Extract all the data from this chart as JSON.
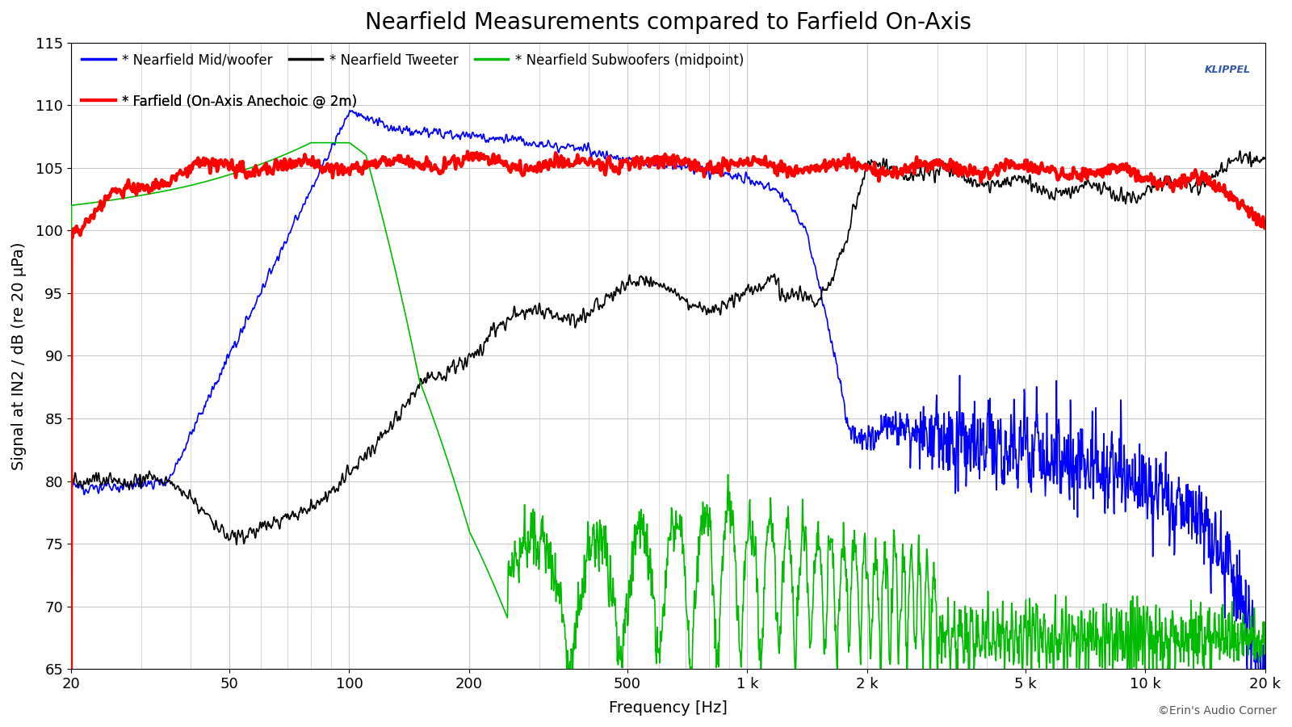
{
  "title": "Nearfield Measurements compared to Farfield On-Axis",
  "xlabel": "Frequency [Hz]",
  "ylabel": "Signal at IN2 / dB (re 20 μPa)",
  "ylim": [
    65,
    115
  ],
  "xlim": [
    20,
    20000
  ],
  "yticks": [
    65,
    70,
    75,
    80,
    85,
    90,
    95,
    100,
    105,
    110,
    115
  ],
  "xtick_positions": [
    20,
    50,
    100,
    200,
    500,
    1000,
    2000,
    5000,
    10000,
    20000
  ],
  "xtick_labels": [
    "20",
    "50",
    "100",
    "200",
    "500",
    "1 k",
    "2 k",
    "5 k",
    "10 k",
    "20 k"
  ],
  "background_color": "#ffffff",
  "grid_color": "#c8c8c8",
  "title_fontsize": 20,
  "legend_fontsize": 12,
  "watermark_text": "©Erin's Audio Corner",
  "klippel_text": "KLIPPEL",
  "series": {
    "mid_woofer": {
      "color": "#0000ff",
      "label": "* Nearfield Mid/woofer",
      "linewidth": 1.2
    },
    "tweeter": {
      "color": "#000000",
      "label": "* Nearfield Tweeter",
      "linewidth": 1.2
    },
    "subwoofer": {
      "color": "#00bb00",
      "label": "* Nearfield Subwoofers (midpoint)",
      "linewidth": 1.2
    },
    "farfield": {
      "color": "#ff0000",
      "label": "* Farfield (On-Axis Anechoic @ 2m)",
      "linewidth": 3.0
    }
  }
}
